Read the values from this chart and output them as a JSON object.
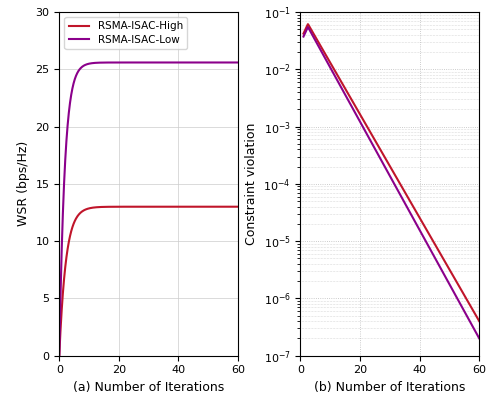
{
  "title_a": "(a) Number of Iterations",
  "title_b": "(b) Number of Iterations",
  "ylabel_a": "WSR (bps/Hz)",
  "ylabel_b": "Constraint violation",
  "xlim": [
    0,
    60
  ],
  "ylim_a": [
    0,
    30
  ],
  "yticks_a": [
    0,
    5,
    10,
    15,
    20,
    25,
    30
  ],
  "xticks": [
    0,
    20,
    40,
    60
  ],
  "legend_labels": [
    "RSMA-ISAC-High",
    "RSMA-ISAC-Low"
  ],
  "color_high": "#c0152a",
  "color_low": "#8b008b",
  "line_width": 1.5,
  "wsr_high_final": 13.0,
  "wsr_low_final": 25.6,
  "wsr_rate_high": 0.45,
  "wsr_rate_low": 0.55,
  "cv_high_peak": 0.062,
  "cv_low_peak": 0.055,
  "cv_high_end": 4e-07,
  "cv_low_end": 2e-07,
  "cv_peak_x": 2.5,
  "grid_color_left": "#cccccc",
  "grid_color_right": "#bbbbbb"
}
